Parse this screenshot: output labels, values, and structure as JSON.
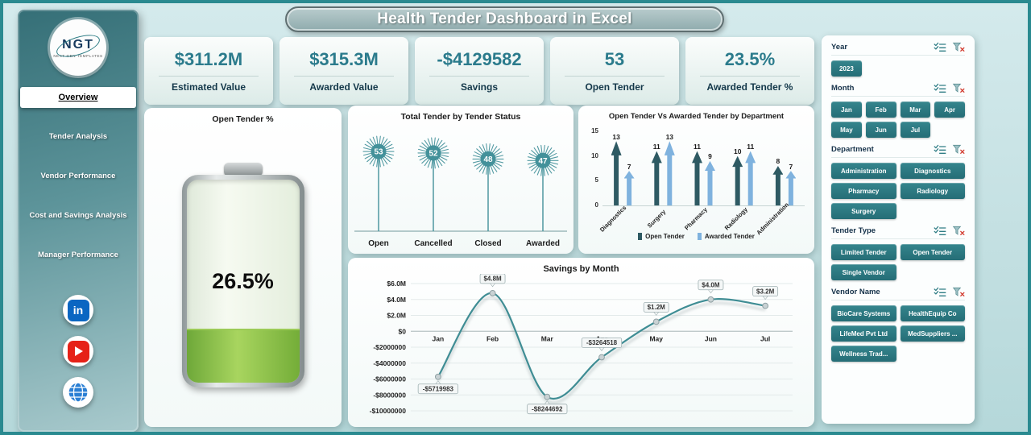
{
  "title": "Health Tender Dashboard in Excel",
  "colors": {
    "accent": "#2e7d85",
    "kpi_value": "#2b7b8c",
    "slicer_button": "#2f7d85",
    "open_tender_bar": "#2e5a63",
    "awarded_tender_bar": "#7fb2de",
    "line": "#3f8d94",
    "battery_fill": "#7ab648"
  },
  "sidebar": {
    "logo": {
      "text": "NGT",
      "subtext": "NEXT GEN TEMPLATES"
    },
    "items": [
      {
        "label": "Overview",
        "active": true
      },
      {
        "label": "Tender Analysis",
        "active": false
      },
      {
        "label": "Vendor Performance",
        "active": false
      },
      {
        "label": "Cost and Savings Analysis",
        "active": false
      },
      {
        "label": "Manager Performance",
        "active": false
      }
    ],
    "social": [
      {
        "name": "linkedin",
        "glyph": "in"
      },
      {
        "name": "youtube"
      },
      {
        "name": "website"
      }
    ]
  },
  "kpis": [
    {
      "value": "$311.2M",
      "label": "Estimated Value"
    },
    {
      "value": "$315.3M",
      "label": "Awarded Value"
    },
    {
      "value": "-$4129582",
      "label": "Savings"
    },
    {
      "value": "53",
      "label": "Open Tender"
    },
    {
      "value": "23.5%",
      "label": "Awarded Tender %"
    }
  ],
  "gauge": {
    "title": "Open Tender %",
    "percent": 26.5,
    "percent_label": "26.5%"
  },
  "chart_data": [
    {
      "id": "tender_status",
      "type": "bar",
      "style": "dandelion",
      "title": "Total Tender by Tender Status",
      "categories": [
        "Open",
        "Cancelled",
        "Closed",
        "Awarded"
      ],
      "values": [
        53,
        52,
        48,
        47
      ],
      "color": "#43919a"
    },
    {
      "id": "dept_compare",
      "type": "bar",
      "style": "arrow-bars",
      "title": "Open Tender Vs Awarded Tender by Department",
      "categories": [
        "Diagnostics",
        "Surgery",
        "Pharmacy",
        "Radiology",
        "Administration"
      ],
      "series": [
        {
          "name": "Open Tender",
          "color": "#2e5a63",
          "values": [
            13,
            11,
            11,
            10,
            8
          ]
        },
        {
          "name": "Awarded Tender",
          "color": "#7fb2de",
          "values": [
            7,
            13,
            9,
            11,
            7
          ]
        }
      ],
      "ylim": [
        0,
        15
      ],
      "yticks": [
        0,
        5,
        10,
        15
      ],
      "legend_position": "bottom"
    },
    {
      "id": "savings_month",
      "type": "line",
      "title": "Savings by Month",
      "x": [
        "Jan",
        "Feb",
        "Mar",
        "Apr",
        "May",
        "Jun",
        "Jul"
      ],
      "values": [
        -5719983,
        4800000,
        -8244692,
        -3264518,
        1200000,
        4000000,
        3200000
      ],
      "labels": [
        "-$5719983",
        "$4.8M",
        "-$8244692",
        "-$3264518",
        "$1.2M",
        "$4.0M",
        "$3.2M"
      ],
      "label_side": [
        "below",
        "above",
        "below",
        "above",
        "above",
        "above",
        "above"
      ],
      "ylim": [
        -10000000,
        6000000
      ],
      "yticks": [
        6000000,
        4000000,
        2000000,
        0,
        -2000000,
        -4000000,
        -6000000,
        -8000000,
        -10000000
      ],
      "ytick_labels": [
        "$6.0M",
        "$4.0M",
        "$2.0M",
        "$0",
        "-$2000000",
        "-$4000000",
        "-$6000000",
        "-$8000000",
        "-$10000000"
      ],
      "line_color": "#3f8d94",
      "marker_color": "#c9d2d4",
      "grid": true
    }
  ],
  "filters": {
    "sections": [
      {
        "title": "Year",
        "items": [
          "2023"
        ]
      },
      {
        "title": "Month",
        "items": [
          "Jan",
          "Feb",
          "Mar",
          "Apr",
          "May",
          "Jun",
          "Jul"
        ]
      },
      {
        "title": "Department",
        "items": [
          "Administration",
          "Diagnostics",
          "Pharmacy",
          "Radiology",
          "Surgery"
        ]
      },
      {
        "title": "Tender Type",
        "items": [
          "Limited Tender",
          "Open Tender",
          "Single Vendor"
        ]
      },
      {
        "title": "Vendor Name",
        "items": [
          "BioCare Systems",
          "HealthEquip Co",
          "LifeMed Pvt Ltd",
          "MedSuppliers ...",
          "Wellness Trad..."
        ]
      }
    ]
  }
}
